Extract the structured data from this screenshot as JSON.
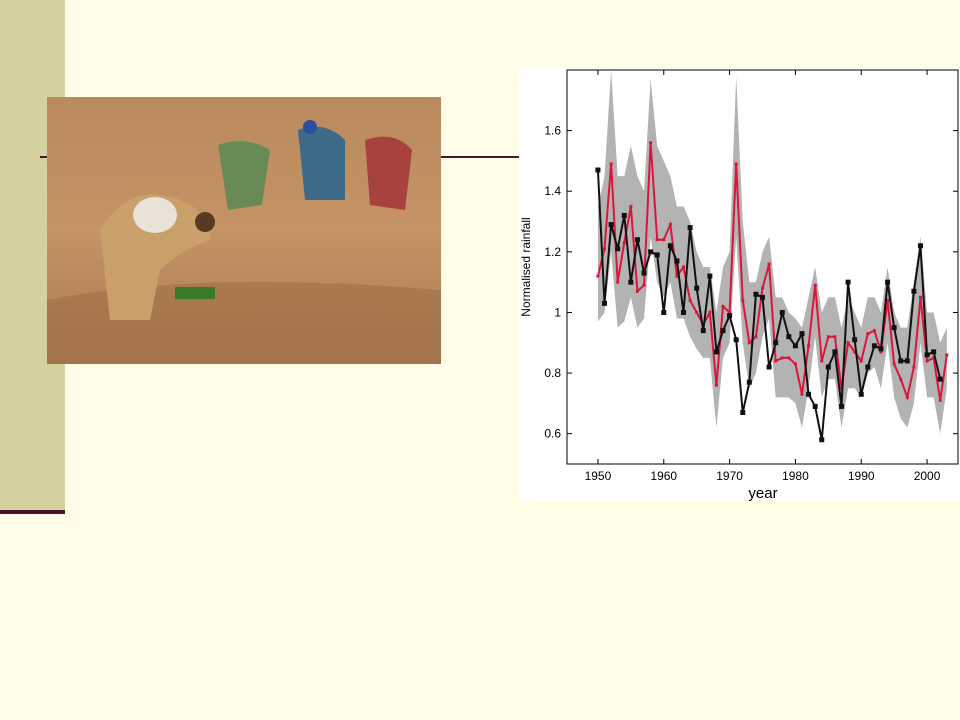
{
  "chart_data": {
    "type": "line",
    "y_label": "Normalised rainfall",
    "x_label": "year",
    "x": [
      1950,
      1951,
      1952,
      1953,
      1954,
      1955,
      1956,
      1957,
      1958,
      1959,
      1960,
      1961,
      1962,
      1963,
      1964,
      1965,
      1966,
      1967,
      1968,
      1969,
      1970,
      1971,
      1972,
      1973,
      1974,
      1975,
      1976,
      1977,
      1978,
      1979,
      1980,
      1981,
      1982,
      1983,
      1984,
      1985,
      1986,
      1987,
      1988,
      1989,
      1990,
      1991,
      1992,
      1993,
      1994,
      1995,
      1996,
      1997,
      1998,
      1999,
      2000,
      2001,
      2002,
      2003
    ],
    "band": {
      "color": "#b3b3b3",
      "upper": [
        1.35,
        1.45,
        1.8,
        1.45,
        1.45,
        1.55,
        1.45,
        1.4,
        1.77,
        1.55,
        1.5,
        1.45,
        1.35,
        1.35,
        1.3,
        1.2,
        1.15,
        1.15,
        1.0,
        1.15,
        1.2,
        1.78,
        1.3,
        1.1,
        1.1,
        1.2,
        1.25,
        1.05,
        1.05,
        1.0,
        0.98,
        0.95,
        1.05,
        1.15,
        1.0,
        1.05,
        1.05,
        0.95,
        1.05,
        1.0,
        0.95,
        1.05,
        1.05,
        1.0,
        1.15,
        1.0,
        0.95,
        0.95,
        1.1,
        1.25,
        1.0,
        1.0,
        0.9,
        0.95
      ],
      "lower": [
        0.97,
        1.0,
        1.2,
        0.95,
        0.97,
        1.05,
        0.95,
        0.98,
        1.25,
        1.1,
        1.05,
        1.1,
        0.98,
        0.98,
        0.92,
        0.88,
        0.85,
        0.85,
        0.62,
        0.85,
        0.9,
        1.25,
        0.9,
        0.75,
        0.8,
        0.92,
        0.98,
        0.72,
        0.72,
        0.72,
        0.7,
        0.62,
        0.75,
        0.92,
        0.72,
        0.78,
        0.78,
        0.62,
        0.75,
        0.75,
        0.72,
        0.8,
        0.82,
        0.75,
        0.9,
        0.72,
        0.65,
        0.62,
        0.7,
        0.9,
        0.72,
        0.72,
        0.6,
        0.75
      ]
    },
    "series": [
      {
        "color": "#d8173a",
        "values": [
          1.12,
          1.21,
          1.49,
          1.1,
          1.23,
          1.35,
          1.07,
          1.09,
          1.56,
          1.24,
          1.24,
          1.29,
          1.12,
          1.15,
          1.04,
          1.0,
          0.96,
          1.0,
          0.76,
          1.02,
          1.0,
          1.49,
          1.04,
          0.9,
          0.92,
          1.08,
          1.16,
          0.84,
          0.85,
          0.85,
          0.83,
          0.73,
          0.89,
          1.09,
          0.84,
          0.92,
          0.92,
          0.75,
          0.9,
          0.87,
          0.84,
          0.93,
          0.94,
          0.87,
          1.04,
          0.83,
          0.78,
          0.72,
          0.82,
          1.05,
          0.84,
          0.85,
          0.71,
          0.86
        ]
      },
      {
        "color": "#111111",
        "values": [
          1.47,
          1.03,
          1.29,
          1.21,
          1.32,
          1.1,
          1.24,
          1.13,
          1.2,
          1.19,
          1.0,
          1.22,
          1.17,
          1.0,
          1.28,
          1.08,
          0.94,
          1.12,
          0.87,
          0.94,
          0.99,
          0.91,
          0.67,
          0.77,
          1.06,
          1.05,
          0.82,
          0.9,
          1.0,
          0.92,
          0.89,
          0.93,
          0.73,
          0.69,
          0.58,
          0.82,
          0.87,
          0.69,
          1.1,
          0.91,
          0.73,
          0.82,
          0.89,
          0.88,
          1.1,
          0.95,
          0.84,
          0.84,
          1.07,
          1.22,
          0.86,
          0.87,
          0.78,
          null
        ]
      }
    ],
    "xlim": [
      1945.3,
      2004.7
    ],
    "ylim": [
      0.5,
      1.8
    ],
    "xticks": [
      1950,
      1960,
      1970,
      1980,
      1990,
      2000
    ],
    "yticks": [
      0.6,
      0.8,
      1,
      1.2,
      1.4,
      1.6
    ]
  }
}
